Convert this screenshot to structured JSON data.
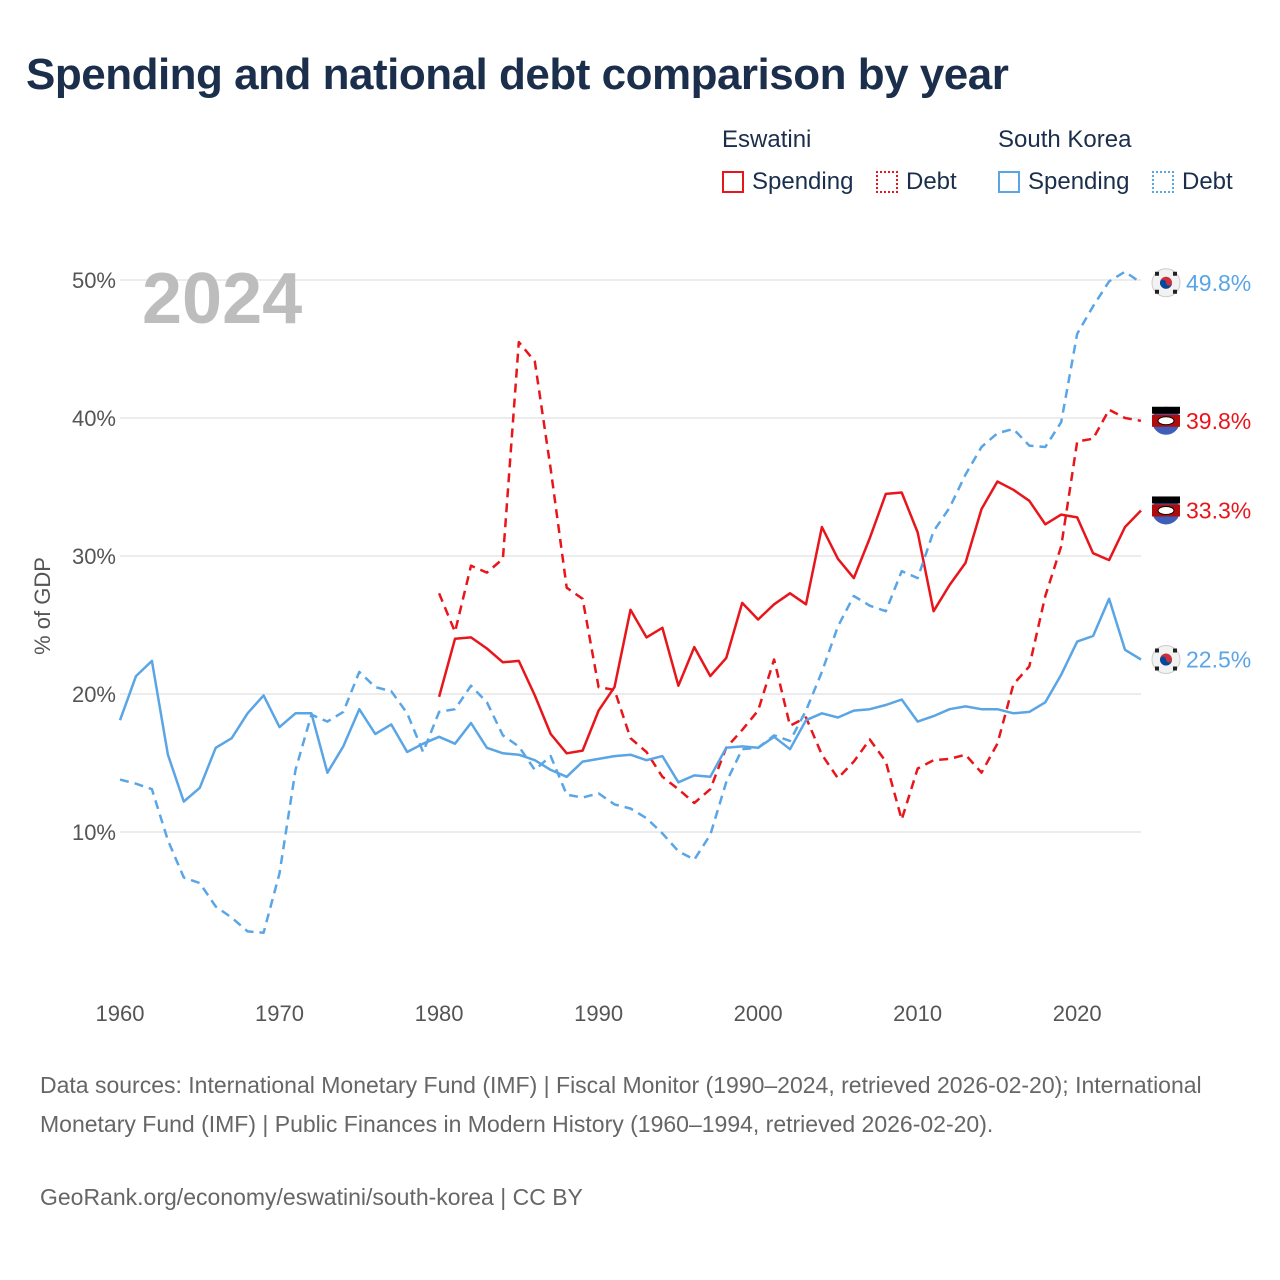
{
  "title": "Spending and national debt comparison by year",
  "legend": {
    "eswatini": {
      "name": "Eswatini",
      "spending": "Spending",
      "debt": "Debt",
      "color": "#e8161b"
    },
    "south_korea": {
      "name": "South Korea",
      "spending": "Spending",
      "debt": "Debt",
      "color": "#5aa5e6"
    }
  },
  "year_label": "2024",
  "footer": {
    "sources": "Data sources: International Monetary Fund (IMF) | Fiscal Monitor (1990–2024, retrieved 2026-02-20); International Monetary Fund (IMF) | Public Finances in Modern History (1960–1994, retrieved 2026-02-20).",
    "link": "GeoRank.org/economy/eswatini/south-korea | CC BY"
  },
  "chart_data": {
    "type": "line",
    "ylabel": "% of GDP",
    "xlim": [
      1960,
      2024
    ],
    "ylim": [
      0,
      50
    ],
    "x_ticks": [
      1960,
      1970,
      1980,
      1990,
      2000,
      2010,
      2020
    ],
    "y_ticks": [
      10,
      20,
      30,
      40,
      50
    ],
    "y_tick_labels": [
      "10%",
      "20%",
      "30%",
      "40%",
      "50%"
    ],
    "series": [
      {
        "name": "Eswatini Spending",
        "color": "#e8161b",
        "dashed": false,
        "start_year": 1980,
        "values": [
          19.8,
          24.0,
          24.1,
          23.3,
          22.3,
          22.4,
          19.9,
          17.1,
          15.7,
          15.9,
          18.8,
          20.5,
          26.1,
          24.1,
          24.8,
          20.6,
          23.4,
          21.3,
          22.6,
          26.6,
          25.4,
          26.5,
          27.3,
          26.5,
          32.1,
          29.8,
          28.4,
          31.3,
          34.5,
          34.6,
          31.7,
          26.0,
          27.9,
          29.5,
          33.4,
          35.4,
          34.8,
          34.0,
          32.3,
          33.0,
          32.8,
          30.2,
          29.7,
          32.1,
          33.3
        ],
        "end_label": "33.3%"
      },
      {
        "name": "Eswatini Debt",
        "color": "#e8161b",
        "dashed": true,
        "start_year": 1980,
        "values": [
          27.3,
          24.5,
          29.3,
          28.8,
          29.8,
          45.5,
          44.1,
          36.3,
          27.7,
          26.9,
          20.5,
          20.3,
          16.8,
          15.8,
          14.0,
          13.1,
          12.1,
          13.1,
          16.1,
          17.4,
          18.8,
          22.5,
          17.7,
          18.3,
          15.6,
          13.9,
          15.1,
          16.7,
          15.1,
          10.9,
          14.6,
          15.2,
          15.3,
          15.6,
          14.3,
          16.4,
          20.7,
          22.0,
          27.1,
          30.7,
          38.3,
          38.5,
          40.6,
          40.0,
          39.8
        ],
        "end_label": "39.8%"
      },
      {
        "name": "South Korea Spending",
        "color": "#5aa5e6",
        "dashed": false,
        "start_year": 1960,
        "values": [
          18.1,
          21.3,
          22.4,
          15.6,
          12.2,
          13.2,
          16.1,
          16.8,
          18.6,
          19.9,
          17.6,
          18.6,
          18.6,
          14.3,
          16.2,
          18.9,
          17.1,
          17.8,
          15.8,
          16.4,
          16.9,
          16.4,
          17.9,
          16.1,
          15.7,
          15.6,
          15.2,
          14.5,
          14.0,
          15.1,
          15.3,
          15.5,
          15.6,
          15.2,
          15.5,
          13.6,
          14.1,
          14.0,
          16.1,
          16.2,
          16.1,
          16.9,
          16.0,
          18.1,
          18.6,
          18.3,
          18.8,
          18.9,
          19.2,
          19.6,
          18.0,
          18.4,
          18.9,
          19.1,
          18.9,
          18.9,
          18.6,
          18.7,
          19.4,
          21.4,
          23.8,
          24.2,
          26.9,
          23.2,
          22.5
        ],
        "end_label": "22.5%"
      },
      {
        "name": "South Korea Debt",
        "color": "#5aa5e6",
        "dashed": true,
        "start_year": 1960,
        "values": [
          13.8,
          13.5,
          13.1,
          9.4,
          6.7,
          6.3,
          4.6,
          3.8,
          2.8,
          2.7,
          7.0,
          14.5,
          18.5,
          18.0,
          18.7,
          21.6,
          20.5,
          20.2,
          18.6,
          15.8,
          18.7,
          18.9,
          20.6,
          19.4,
          17.0,
          16.2,
          14.5,
          15.5,
          12.7,
          12.5,
          12.8,
          12.0,
          11.7,
          11.0,
          9.9,
          8.6,
          8.0,
          9.8,
          13.6,
          16.0,
          16.1,
          17.0,
          16.6,
          18.8,
          21.6,
          24.9,
          27.1,
          26.4,
          26.0,
          28.9,
          28.4,
          31.8,
          33.5,
          35.9,
          37.9,
          38.9,
          39.2,
          38.0,
          37.9,
          39.7,
          46.1,
          48.1,
          49.9,
          50.6,
          49.8
        ],
        "end_label": "49.8%"
      }
    ]
  }
}
